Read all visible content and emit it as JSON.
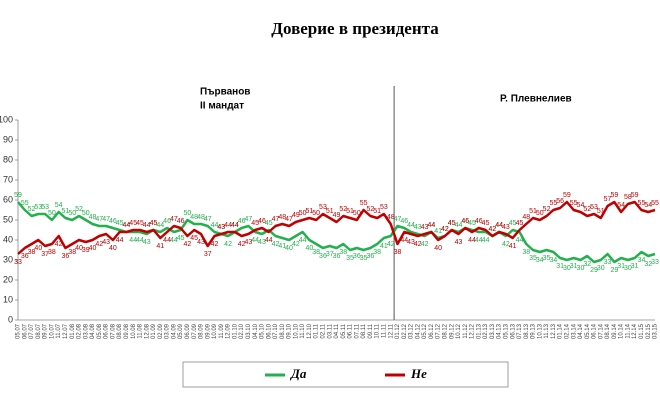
{
  "chart_data": {
    "type": "line",
    "title": "Доверие в президента",
    "annotations": [
      "Първанов",
      "II мандат",
      "Р. Плевнелиев"
    ],
    "categories": [
      "05.07",
      "06.07",
      "07.07",
      "08.07",
      "09.07",
      "10.07",
      "11.07",
      "12.07",
      "01.08",
      "02.08",
      "03.08",
      "04.08",
      "05.08",
      "06.08",
      "07.08",
      "08.08",
      "09.08",
      "10.08",
      "11.08",
      "12.08",
      "01.09",
      "02.09",
      "03.09",
      "04.09",
      "05.09",
      "06.09",
      "07.09",
      "08.09",
      "09.09",
      "10.09",
      "11.09",
      "12.09",
      "01.10",
      "02.10",
      "03.10",
      "04.10",
      "05.10",
      "06.10",
      "07.10",
      "08.10",
      "09.10",
      "10.10",
      "11.10",
      "12.10",
      "01.11",
      "02.11",
      "03.11",
      "04.11",
      "05.11",
      "06.11",
      "07.11",
      "08.11",
      "09.11",
      "10.11",
      "11.11",
      "12.11",
      "01.12",
      "02.12",
      "03.12",
      "04.12",
      "05.12",
      "06.12",
      "07.12",
      "08.12",
      "09.12",
      "10.12",
      "11.12",
      "12.12",
      "01.13",
      "02.13",
      "03.13",
      "04.13",
      "05.13",
      "06.13",
      "07.13",
      "08.13",
      "09.13",
      "10.13",
      "11.13",
      "12.13",
      "01.14",
      "02.14",
      "03.14",
      "04.14",
      "05.14",
      "06.14",
      "07.14",
      "08.14",
      "09.14",
      "10.14",
      "11.14",
      "12.14",
      "01.15",
      "02.15",
      "03.15"
    ],
    "series": [
      {
        "name": "Да",
        "color": "#22b14c",
        "values": [
          59,
          55,
          52,
          53,
          53,
          50,
          54,
          51,
          50,
          52,
          50,
          48,
          47,
          47,
          46,
          45,
          44,
          44,
          44,
          43,
          45,
          44,
          46,
          44,
          45,
          50,
          48,
          48,
          47,
          44,
          43,
          42,
          44,
          46,
          47,
          44,
          43,
          45,
          42,
          41,
          40,
          42,
          44,
          40,
          38,
          36,
          37,
          36,
          38,
          35,
          36,
          35,
          36,
          38,
          41,
          42,
          47,
          46,
          44,
          43,
          42,
          44,
          41,
          42,
          45,
          44,
          46,
          45,
          44,
          44,
          42,
          44,
          42,
          45,
          44,
          38,
          35,
          34,
          35,
          34,
          31,
          30,
          31,
          30,
          32,
          29,
          30,
          33,
          29,
          31,
          30,
          31,
          34,
          32,
          33
        ]
      },
      {
        "name": "Не",
        "color": "#c00000",
        "values": [
          33,
          36,
          38,
          40,
          37,
          38,
          42,
          36,
          38,
          40,
          39,
          40,
          42,
          43,
          40,
          44,
          44,
          45,
          45,
          44,
          45,
          41,
          44,
          47,
          46,
          42,
          45,
          43,
          37,
          42,
          43,
          44,
          44,
          42,
          43,
          45,
          46,
          44,
          47,
          48,
          47,
          49,
          50,
          51,
          50,
          53,
          51,
          49,
          52,
          51,
          50,
          55,
          52,
          51,
          53,
          48,
          38,
          44,
          43,
          42,
          43,
          44,
          40,
          42,
          45,
          43,
          46,
          44,
          46,
          45,
          42,
          44,
          43,
          41,
          45,
          48,
          51,
          50,
          52,
          55,
          56,
          59,
          55,
          54,
          52,
          53,
          51,
          57,
          59,
          54,
          58,
          59,
          55,
          54,
          55
        ]
      }
    ],
    "ylim": [
      0,
      100
    ],
    "yticks": [
      0,
      10,
      20,
      30,
      40,
      50,
      60,
      70,
      80,
      90,
      100
    ],
    "legend": "bottom"
  }
}
